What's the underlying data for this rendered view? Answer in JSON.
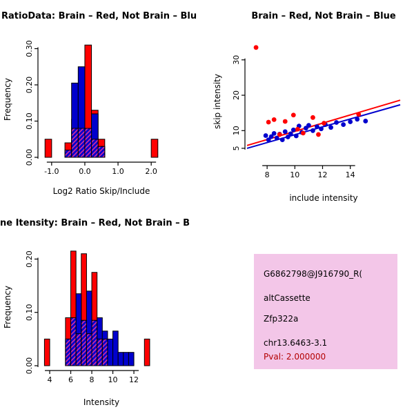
{
  "figure": {
    "background": "#ffffff"
  },
  "chart_data": [
    {
      "type": "histogram",
      "title": "RatioData: Brain – Red, Not Brain – Blu",
      "xlabel": "Log2 Ratio Skip/Include",
      "ylabel": "Frequency",
      "xlim": [
        -1.35,
        2.35
      ],
      "ylim": [
        0,
        0.32
      ],
      "bin_width": 0.2,
      "xticks": {
        "values": [
          -1.0,
          0.0,
          1.0,
          2.0
        ],
        "labels": [
          "-1.0",
          "0.0",
          "1.0",
          "2.0"
        ]
      },
      "yticks": {
        "values": [
          0.0,
          0.1,
          0.2,
          0.3
        ],
        "labels": [
          "0.00",
          "0.10",
          "0.20",
          "0.30"
        ]
      },
      "series": [
        {
          "name": "brain-red",
          "color": "#ff0000",
          "bins": [
            [
              -1.2,
              0.05
            ],
            [
              -0.6,
              0.04
            ],
            [
              -0.4,
              0.105
            ],
            [
              -0.2,
              0.155
            ],
            [
              0.0,
              0.31
            ],
            [
              0.2,
              0.13
            ],
            [
              0.4,
              0.05
            ],
            [
              2.0,
              0.05
            ]
          ]
        },
        {
          "name": "not-brain-blue",
          "color": "#0000cd",
          "bins": [
            [
              -0.6,
              0.02
            ],
            [
              -0.4,
              0.205
            ],
            [
              -0.2,
              0.25
            ],
            [
              0.0,
              0.08
            ],
            [
              0.2,
              0.12
            ],
            [
              0.4,
              0.03
            ]
          ]
        },
        {
          "name": "overlap-hatched",
          "color": "#e0309a",
          "hatch": true,
          "bins": [
            [
              -0.6,
              0.02
            ],
            [
              -0.4,
              0.08
            ],
            [
              -0.2,
              0.08
            ],
            [
              0.0,
              0.08
            ],
            [
              0.2,
              0.05
            ],
            [
              0.4,
              0.03
            ]
          ]
        }
      ]
    },
    {
      "type": "scatter",
      "title": "Brain – Red, Not Brain – Blue",
      "xlabel": "include intensity",
      "ylabel": "skip intensity",
      "xlim": [
        6.55,
        17.6
      ],
      "ylim": [
        0.5,
        36
      ],
      "xticks": {
        "values": [
          8,
          10,
          12,
          14
        ],
        "labels": [
          "8",
          "10",
          "12",
          "14"
        ]
      },
      "yticks": {
        "values": [
          5,
          10,
          20,
          30
        ],
        "labels": [
          "5",
          "10",
          "20",
          "30"
        ]
      },
      "series": [
        {
          "name": "not-brain-blue",
          "color": "#0000cd",
          "points": [
            [
              7.9,
              8.6
            ],
            [
              8.1,
              7.4
            ],
            [
              8.3,
              8.3
            ],
            [
              8.5,
              9.2
            ],
            [
              8.7,
              7.9
            ],
            [
              8.9,
              9.0
            ],
            [
              9.1,
              7.4
            ],
            [
              9.3,
              9.7
            ],
            [
              9.5,
              8.2
            ],
            [
              9.7,
              9.1
            ],
            [
              9.9,
              10.2
            ],
            [
              10.1,
              8.5
            ],
            [
              10.3,
              11.3
            ],
            [
              10.5,
              9.5
            ],
            [
              10.8,
              10.7
            ],
            [
              11.0,
              11.5
            ],
            [
              11.3,
              10.0
            ],
            [
              11.6,
              11.1
            ],
            [
              11.9,
              10.5
            ],
            [
              12.2,
              11.7
            ],
            [
              12.6,
              10.9
            ],
            [
              13.0,
              12.3
            ],
            [
              13.5,
              11.7
            ],
            [
              14.0,
              12.5
            ],
            [
              14.5,
              13.2
            ],
            [
              15.1,
              12.7
            ]
          ]
        },
        {
          "name": "brain-red",
          "color": "#ff0000",
          "points": [
            [
              7.2,
              33.5
            ],
            [
              8.1,
              12.4
            ],
            [
              8.5,
              13.1
            ],
            [
              8.9,
              8.9
            ],
            [
              9.3,
              12.6
            ],
            [
              9.9,
              14.4
            ],
            [
              10.2,
              10.4
            ],
            [
              10.6,
              9.3
            ],
            [
              11.3,
              13.7
            ],
            [
              11.7,
              8.9
            ],
            [
              12.1,
              12.1
            ],
            [
              14.6,
              14.6
            ]
          ]
        }
      ],
      "lines": [
        {
          "name": "blue-fit",
          "color": "#0000cd",
          "x1": 6.55,
          "y1": 5.0,
          "x2": 17.6,
          "y2": 17.3
        },
        {
          "name": "red-fit",
          "color": "#ff0000",
          "x1": 6.55,
          "y1": 5.8,
          "x2": 17.6,
          "y2": 18.6
        }
      ]
    },
    {
      "type": "histogram",
      "title": "ne Itensity: Brain – Red, Not Brain – B",
      "xlabel": "Intensity",
      "ylabel": "Frequency",
      "xlim": [
        3.08,
        14.75
      ],
      "ylim": [
        0,
        0.22
      ],
      "bin_width": 0.5,
      "xticks": {
        "values": [
          4,
          6,
          8,
          10,
          12
        ],
        "labels": [
          "4",
          "6",
          "8",
          "10",
          "12"
        ]
      },
      "yticks": {
        "values": [
          0.0,
          0.1,
          0.2
        ],
        "labels": [
          "0.00",
          "0.10",
          "0.20"
        ]
      },
      "series": [
        {
          "name": "brain-red",
          "color": "#ff0000",
          "bins": [
            [
              3.5,
              0.05
            ],
            [
              5.5,
              0.09
            ],
            [
              6.0,
              0.215
            ],
            [
              6.5,
              0.06
            ],
            [
              7.0,
              0.21
            ],
            [
              7.5,
              0.06
            ],
            [
              8.0,
              0.175
            ],
            [
              8.5,
              0.05
            ],
            [
              9.0,
              0.05
            ],
            [
              13.0,
              0.05
            ]
          ]
        },
        {
          "name": "not-brain-blue",
          "color": "#0000cd",
          "bins": [
            [
              5.5,
              0.05
            ],
            [
              6.0,
              0.09
            ],
            [
              6.5,
              0.135
            ],
            [
              7.0,
              0.085
            ],
            [
              7.5,
              0.14
            ],
            [
              8.0,
              0.085
            ],
            [
              8.5,
              0.09
            ],
            [
              9.0,
              0.065
            ],
            [
              9.5,
              0.05
            ],
            [
              10.0,
              0.065
            ],
            [
              10.5,
              0.025
            ],
            [
              11.0,
              0.025
            ],
            [
              11.5,
              0.025
            ]
          ]
        },
        {
          "name": "overlap-hatched",
          "color": "#e0309a",
          "hatch": true,
          "bins": [
            [
              5.5,
              0.05
            ],
            [
              6.0,
              0.09
            ],
            [
              6.5,
              0.06
            ],
            [
              7.0,
              0.085
            ],
            [
              7.5,
              0.06
            ],
            [
              8.0,
              0.085
            ],
            [
              8.5,
              0.05
            ],
            [
              9.0,
              0.05
            ]
          ]
        }
      ]
    }
  ],
  "info_box": {
    "bg": "#f3c6e8",
    "id": "G6862798@J916790_R(",
    "event": "altCassette",
    "gene": "Zfp322a",
    "locus": "chr13.6463-3.1",
    "pval": "Pval: 2.000000",
    "pval_color": "#b30000"
  }
}
